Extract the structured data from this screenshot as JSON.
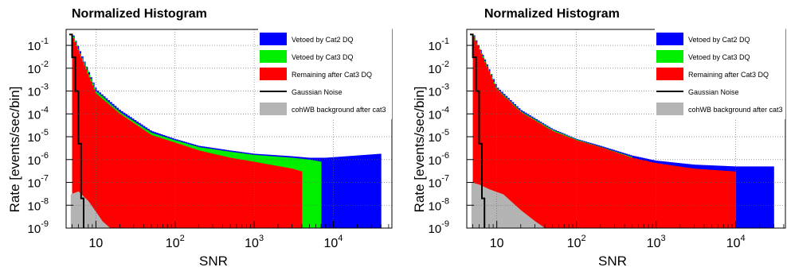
{
  "chart_data": [
    {
      "type": "histogram",
      "title": "Normalized Histogram",
      "xlabel": "SNR",
      "ylabel": "Rate [events/sec/bin]",
      "x_scale": "log",
      "y_scale": "log",
      "xlim": [
        4.2,
        55000
      ],
      "ylim": [
        1e-09,
        0.5
      ],
      "grid": true,
      "legend_position": "right",
      "x_ticks": [
        {
          "v": 10,
          "base": "10",
          "exp": ""
        },
        {
          "v": 100,
          "base": "10",
          "exp": "2"
        },
        {
          "v": 1000,
          "base": "10",
          "exp": "3"
        },
        {
          "v": 10000,
          "base": "10",
          "exp": "4"
        }
      ],
      "y_ticks": [
        {
          "v": 0.1,
          "exp": "-1"
        },
        {
          "v": 0.01,
          "exp": "-2"
        },
        {
          "v": 0.001,
          "exp": "-3"
        },
        {
          "v": 0.0001,
          "exp": "-4"
        },
        {
          "v": 1e-05,
          "exp": "-5"
        },
        {
          "v": 1e-06,
          "exp": "-6"
        },
        {
          "v": 1e-07,
          "exp": "-7"
        },
        {
          "v": 1e-08,
          "exp": "-8"
        },
        {
          "v": 1e-09,
          "exp": "-9"
        }
      ],
      "series": [
        {
          "name": "Vetoed by Cat2 DQ",
          "color": "#0000ff",
          "x": [
            5,
            10,
            20,
            50,
            100,
            200,
            500,
            1000,
            3000,
            5000,
            8000,
            40000
          ],
          "y": [
            0.35,
            0.0012,
            0.00015,
            1.8e-05,
            8e-06,
            4e-06,
            2.5e-06,
            1.8e-06,
            1.4e-06,
            1.2e-06,
            1.2e-06,
            1.8e-06
          ]
        },
        {
          "name": "Vetoed by Cat3 DQ",
          "color": "#00ee00",
          "x": [
            5,
            10,
            20,
            50,
            100,
            200,
            500,
            1000,
            3000,
            5000,
            7000
          ],
          "y": [
            0.3,
            0.001,
            0.00012,
            1.5e-05,
            7e-06,
            3.5e-06,
            2.2e-06,
            1.6e-06,
            1.2e-06,
            1e-06,
            8e-07
          ]
        },
        {
          "name": "Remaining after Cat3 DQ",
          "color": "#ff0000",
          "x": [
            5,
            10,
            20,
            50,
            100,
            200,
            500,
            1000,
            3000,
            4000
          ],
          "y": [
            0.25,
            0.0008,
            0.0001,
            1.2e-05,
            5.5e-06,
            2.5e-06,
            1.2e-06,
            8e-07,
            4e-07,
            3e-07
          ]
        },
        {
          "name": "Gaussian Noise",
          "color": "#000000",
          "x": [
            4.6,
            5,
            5.5,
            6,
            6.5,
            7
          ],
          "y": [
            0.3,
            0.03,
            0.001,
            5e-06,
            2e-08,
            1e-09
          ]
        },
        {
          "name": "cohWB background after cat3",
          "color": "#b4b4b4",
          "x": [
            4.8,
            6,
            8,
            10,
            12,
            15
          ],
          "y": [
            3e-08,
            4e-08,
            1.5e-08,
            5e-09,
            2e-09,
            1e-09
          ]
        }
      ]
    },
    {
      "type": "histogram",
      "title": "Normalized Histogram",
      "xlabel": "SNR",
      "ylabel": "Rate [events/sec/bin]",
      "x_scale": "log",
      "y_scale": "log",
      "xlim": [
        4.2,
        42000
      ],
      "ylim": [
        1e-09,
        0.5
      ],
      "grid": true,
      "legend_position": "right",
      "x_ticks": [
        {
          "v": 10,
          "base": "10",
          "exp": ""
        },
        {
          "v": 100,
          "base": "10",
          "exp": "2"
        },
        {
          "v": 1000,
          "base": "10",
          "exp": "3"
        },
        {
          "v": 10000,
          "base": "10",
          "exp": "4"
        }
      ],
      "y_ticks": [
        {
          "v": 0.1,
          "exp": "-1"
        },
        {
          "v": 0.01,
          "exp": "-2"
        },
        {
          "v": 0.001,
          "exp": "-3"
        },
        {
          "v": 0.0001,
          "exp": "-4"
        },
        {
          "v": 1e-05,
          "exp": "-5"
        },
        {
          "v": 1e-06,
          "exp": "-6"
        },
        {
          "v": 1e-07,
          "exp": "-7"
        },
        {
          "v": 1e-08,
          "exp": "-8"
        },
        {
          "v": 1e-09,
          "exp": "-9"
        }
      ],
      "series": [
        {
          "name": "Vetoed by Cat2 DQ",
          "color": "#0000ff",
          "x": [
            5,
            10,
            20,
            50,
            100,
            200,
            500,
            1000,
            3000,
            10000,
            30000
          ],
          "y": [
            0.35,
            0.0015,
            0.00015,
            2.2e-05,
            8e-06,
            4e-06,
            1.5e-06,
            9e-07,
            6e-07,
            5e-07,
            5e-07
          ]
        },
        {
          "name": "Vetoed by Cat3 DQ",
          "color": "#00ee00",
          "x": [
            5,
            10,
            20,
            50,
            100,
            200,
            500
          ],
          "y": [
            0.32,
            0.0013,
            0.00013,
            2e-05,
            7.5e-06,
            3.6e-06,
            1.3e-06
          ]
        },
        {
          "name": "Remaining after Cat3 DQ",
          "color": "#ff0000",
          "x": [
            5,
            10,
            20,
            50,
            100,
            200,
            500,
            1000,
            3000,
            10000
          ],
          "y": [
            0.3,
            0.0012,
            0.00012,
            1.8e-05,
            7e-06,
            3.5e-06,
            1.2e-06,
            7e-07,
            4e-07,
            3e-07
          ]
        },
        {
          "name": "Gaussian Noise",
          "color": "#000000",
          "x": [
            4.6,
            5,
            5.5,
            6,
            6.5,
            7
          ],
          "y": [
            0.3,
            0.03,
            0.001,
            5e-06,
            2e-08,
            1e-09
          ]
        },
        {
          "name": "cohWB background after cat3",
          "color": "#b4b4b4",
          "x": [
            4.8,
            6,
            8,
            12,
            20,
            30,
            40
          ],
          "y": [
            1e-07,
            8e-08,
            5e-08,
            3e-08,
            6e-09,
            2e-09,
            1e-09
          ]
        }
      ]
    }
  ]
}
